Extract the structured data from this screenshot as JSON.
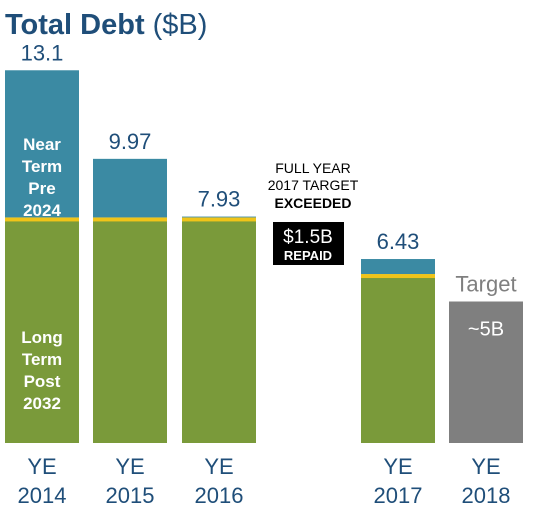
{
  "chart_data": {
    "type": "bar",
    "title_main": "Total Debt",
    "title_unit": "($B)",
    "categories": [
      {
        "line1": "YE",
        "line2": "2014"
      },
      {
        "line1": "YE",
        "line2": "2015"
      },
      {
        "line1": "YE",
        "line2": "2016"
      },
      {
        "line1": "YE",
        "line2": "2017"
      },
      {
        "line1": "YE",
        "line2": "2018"
      }
    ],
    "totals": [
      "13.1",
      "9.97",
      "7.93",
      "6.43",
      "Target"
    ],
    "total_values": [
      13.1,
      9.97,
      7.93,
      6.43,
      5
    ],
    "series": [
      {
        "name": "Long Term Post 2032",
        "label_lines": [
          "Long",
          "Term",
          "Post",
          "2032"
        ],
        "color": "#7a9a3a",
        "values": [
          7.9,
          7.9,
          7.9,
          5.9,
          null
        ]
      },
      {
        "name": "Near Term Pre 2024",
        "label_lines": [
          "Near",
          "Term",
          "Pre",
          "2024"
        ],
        "color": "#3b8aa3",
        "values": [
          5.2,
          2.07,
          0.03,
          0.53,
          null
        ]
      },
      {
        "name": "Target",
        "color": "#7f7f7f",
        "values": [
          null,
          null,
          null,
          null,
          5
        ]
      }
    ],
    "target_label": "~5B",
    "divider_color": "#f0c419",
    "callout": {
      "lines": [
        "FULL YEAR",
        "2017 TARGET",
        "EXCEEDED"
      ],
      "badge_value": "$1.5B",
      "badge_label": "REPAID"
    },
    "colors": {
      "title": "#1f4e79",
      "axis_text": "#1f4e79",
      "value_text": "#1f4e79",
      "target_text": "#7f7f7f"
    }
  }
}
